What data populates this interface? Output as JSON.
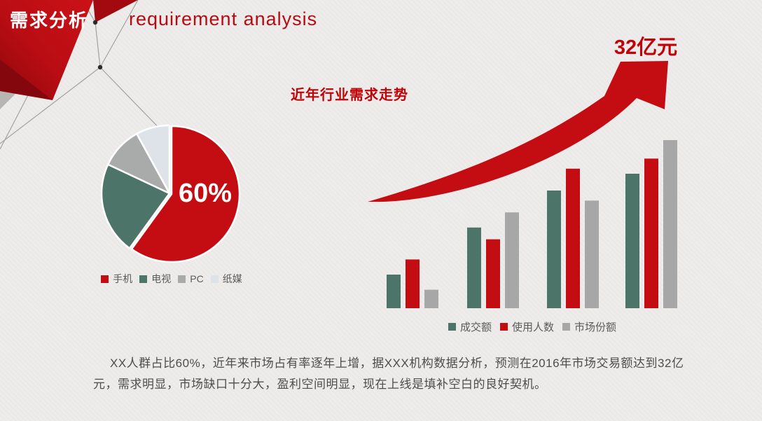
{
  "slide": {
    "header": {
      "title_zh": "需求分析",
      "title_en": "requirement analysis"
    },
    "paragraph": {
      "line1": "XX人群占比60%，近年来市场占有率逐年上增，据XXX机构数据分析，预测在2016年市场交易额达到32亿",
      "line2": "元，需求明显，市场缺口十分大，盈利空间明显，现在上线是填补空白的良好契机。"
    },
    "colors": {
      "accent_red": "#c40d13",
      "dark_red": "#8a070d",
      "teal": "#4d7468",
      "gray": "#a7a7a7",
      "light_gray": "#dde3e8",
      "text_gray": "#4d4d4d",
      "background": "#edecea"
    }
  },
  "chart_data": [
    {
      "type": "pie",
      "center_label": "60%",
      "legend_position": "bottom",
      "slices": [
        {
          "label": "手机",
          "value": 60,
          "color": "#c40d13"
        },
        {
          "label": "电视",
          "value": 22,
          "color": "#4d7468"
        },
        {
          "label": "PC",
          "value": 10,
          "color": "#a9abab"
        },
        {
          "label": "纸媒",
          "value": 8,
          "color": "#dde3e8"
        }
      ]
    },
    {
      "type": "bar",
      "title": "近年行业需求走势",
      "annotation": "32亿元",
      "categories": [
        "",
        "",
        "",
        ""
      ],
      "series": [
        {
          "name": "成交额",
          "color": "#4d7468",
          "values": [
            20,
            48,
            70,
            80
          ]
        },
        {
          "name": "使用人数",
          "color": "#c40d13",
          "values": [
            29,
            41,
            83,
            89
          ]
        },
        {
          "name": "市场份额",
          "color": "#a7a7a7",
          "values": [
            11,
            57,
            64,
            100
          ]
        }
      ],
      "ylim": [
        0,
        100
      ],
      "grid": false,
      "axes": "hidden",
      "legend_position": "bottom"
    }
  ]
}
